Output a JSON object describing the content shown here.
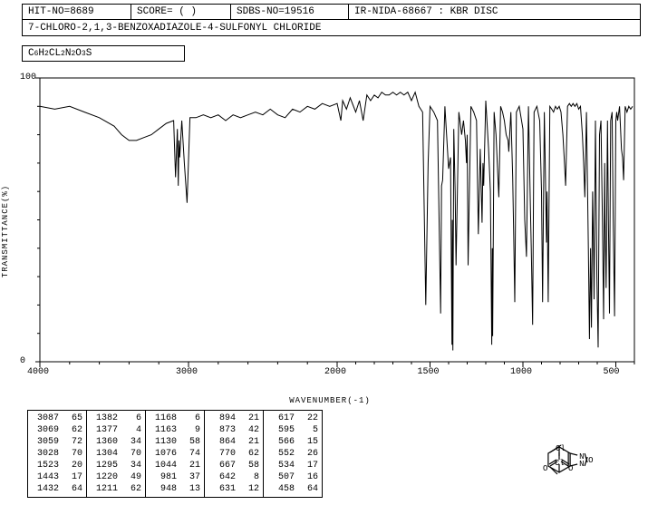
{
  "header": {
    "hit_no": "HIT-NO=8689",
    "score": "SCORE=  (  )",
    "sdbs_no": "SDBS-NO=19516",
    "ir_info": "IR-NIDA-68667 : KBR DISC"
  },
  "compound_name": "7-CHLORO-2,1,3-BENZOXADIAZOLE-4-SULFONYL CHLORIDE",
  "formula_html": "C<sub>6</sub>H<sub>2</sub>CL<sub>2</sub>N<sub>2</sub>O<sub>3</sub>S",
  "chart": {
    "type": "line",
    "xlabel": "WAVENUMBER(-1)",
    "ylabel": "TRANSMITTANCE(%)",
    "xlim": [
      4000,
      400
    ],
    "ylim": [
      0,
      100
    ],
    "xticks": [
      4000,
      3000,
      2000,
      1500,
      1000,
      500
    ],
    "yticks": [
      0,
      100
    ],
    "minor_xtick_step_high": 200,
    "minor_xtick_step_low": 100,
    "background_color": "#ffffff",
    "line_color": "#000000",
    "axis_color": "#000000",
    "line_width": 1,
    "spectrum": [
      [
        4000,
        90
      ],
      [
        3900,
        89
      ],
      [
        3800,
        90
      ],
      [
        3700,
        88
      ],
      [
        3600,
        86
      ],
      [
        3500,
        83
      ],
      [
        3450,
        80
      ],
      [
        3400,
        78
      ],
      [
        3350,
        78
      ],
      [
        3300,
        79
      ],
      [
        3250,
        80
      ],
      [
        3200,
        82
      ],
      [
        3150,
        84
      ],
      [
        3100,
        85
      ],
      [
        3087,
        65
      ],
      [
        3075,
        82
      ],
      [
        3069,
        62
      ],
      [
        3064,
        78
      ],
      [
        3059,
        72
      ],
      [
        3045,
        85
      ],
      [
        3028,
        70
      ],
      [
        3010,
        56
      ],
      [
        2990,
        86
      ],
      [
        2950,
        86
      ],
      [
        2900,
        87
      ],
      [
        2850,
        86
      ],
      [
        2800,
        87
      ],
      [
        2750,
        85
      ],
      [
        2700,
        87
      ],
      [
        2650,
        86
      ],
      [
        2600,
        87
      ],
      [
        2550,
        88
      ],
      [
        2500,
        87
      ],
      [
        2450,
        89
      ],
      [
        2400,
        87
      ],
      [
        2350,
        86
      ],
      [
        2300,
        89
      ],
      [
        2250,
        88
      ],
      [
        2200,
        90
      ],
      [
        2150,
        89
      ],
      [
        2100,
        91
      ],
      [
        2050,
        90
      ],
      [
        2000,
        91
      ],
      [
        1980,
        85
      ],
      [
        1970,
        92
      ],
      [
        1950,
        89
      ],
      [
        1930,
        93
      ],
      [
        1900,
        88
      ],
      [
        1880,
        92
      ],
      [
        1860,
        85
      ],
      [
        1840,
        94
      ],
      [
        1820,
        92
      ],
      [
        1800,
        94
      ],
      [
        1780,
        93
      ],
      [
        1760,
        95
      ],
      [
        1740,
        94
      ],
      [
        1720,
        94
      ],
      [
        1700,
        95
      ],
      [
        1680,
        94
      ],
      [
        1660,
        95
      ],
      [
        1640,
        94
      ],
      [
        1620,
        95
      ],
      [
        1600,
        92
      ],
      [
        1580,
        95
      ],
      [
        1560,
        90
      ],
      [
        1540,
        88
      ],
      [
        1523,
        20
      ],
      [
        1510,
        70
      ],
      [
        1500,
        90
      ],
      [
        1480,
        88
      ],
      [
        1460,
        85
      ],
      [
        1443,
        17
      ],
      [
        1438,
        62
      ],
      [
        1432,
        64
      ],
      [
        1420,
        90
      ],
      [
        1400,
        68
      ],
      [
        1390,
        72
      ],
      [
        1382,
        6
      ],
      [
        1380,
        50
      ],
      [
        1377,
        4
      ],
      [
        1372,
        82
      ],
      [
        1365,
        60
      ],
      [
        1360,
        34
      ],
      [
        1345,
        88
      ],
      [
        1330,
        80
      ],
      [
        1320,
        85
      ],
      [
        1310,
        78
      ],
      [
        1304,
        70
      ],
      [
        1300,
        80
      ],
      [
        1295,
        34
      ],
      [
        1280,
        90
      ],
      [
        1265,
        88
      ],
      [
        1250,
        85
      ],
      [
        1240,
        45
      ],
      [
        1230,
        75
      ],
      [
        1220,
        49
      ],
      [
        1215,
        70
      ],
      [
        1211,
        62
      ],
      [
        1200,
        92
      ],
      [
        1185,
        75
      ],
      [
        1175,
        60
      ],
      [
        1168,
        6
      ],
      [
        1165,
        40
      ],
      [
        1163,
        9
      ],
      [
        1155,
        88
      ],
      [
        1145,
        80
      ],
      [
        1138,
        70
      ],
      [
        1130,
        58
      ],
      [
        1120,
        90
      ],
      [
        1110,
        88
      ],
      [
        1100,
        85
      ],
      [
        1090,
        80
      ],
      [
        1080,
        78
      ],
      [
        1076,
        74
      ],
      [
        1065,
        88
      ],
      [
        1055,
        65
      ],
      [
        1050,
        45
      ],
      [
        1044,
        21
      ],
      [
        1035,
        88
      ],
      [
        1020,
        90
      ],
      [
        1000,
        82
      ],
      [
        990,
        50
      ],
      [
        981,
        37
      ],
      [
        970,
        90
      ],
      [
        960,
        55
      ],
      [
        955,
        40
      ],
      [
        948,
        13
      ],
      [
        940,
        88
      ],
      [
        925,
        90
      ],
      [
        910,
        85
      ],
      [
        900,
        60
      ],
      [
        894,
        21
      ],
      [
        885,
        88
      ],
      [
        880,
        70
      ],
      [
        873,
        42
      ],
      [
        870,
        60
      ],
      [
        864,
        21
      ],
      [
        855,
        90
      ],
      [
        845,
        89
      ],
      [
        835,
        88
      ],
      [
        825,
        90
      ],
      [
        815,
        89
      ],
      [
        805,
        90
      ],
      [
        795,
        88
      ],
      [
        785,
        80
      ],
      [
        778,
        72
      ],
      [
        770,
        62
      ],
      [
        760,
        90
      ],
      [
        750,
        91
      ],
      [
        740,
        90
      ],
      [
        730,
        91
      ],
      [
        720,
        90
      ],
      [
        710,
        91
      ],
      [
        700,
        89
      ],
      [
        690,
        90
      ],
      [
        680,
        80
      ],
      [
        673,
        70
      ],
      [
        667,
        58
      ],
      [
        658,
        88
      ],
      [
        648,
        40
      ],
      [
        642,
        8
      ],
      [
        636,
        40
      ],
      [
        631,
        12
      ],
      [
        625,
        60
      ],
      [
        620,
        40
      ],
      [
        617,
        22
      ],
      [
        610,
        85
      ],
      [
        602,
        30
      ],
      [
        595,
        5
      ],
      [
        588,
        80
      ],
      [
        580,
        85
      ],
      [
        572,
        50
      ],
      [
        566,
        15
      ],
      [
        560,
        70
      ],
      [
        558,
        50
      ],
      [
        552,
        26
      ],
      [
        545,
        85
      ],
      [
        540,
        50
      ],
      [
        534,
        17
      ],
      [
        528,
        85
      ],
      [
        520,
        88
      ],
      [
        514,
        50
      ],
      [
        507,
        16
      ],
      [
        500,
        85
      ],
      [
        495,
        88
      ],
      [
        490,
        85
      ],
      [
        480,
        90
      ],
      [
        470,
        75
      ],
      [
        464,
        72
      ],
      [
        458,
        64
      ],
      [
        450,
        90
      ],
      [
        440,
        88
      ],
      [
        430,
        90
      ],
      [
        420,
        89
      ],
      [
        410,
        90
      ]
    ]
  },
  "peak_table": {
    "columns": [
      [
        [
          3087,
          65
        ],
        [
          3069,
          62
        ],
        [
          3059,
          72
        ],
        [
          3028,
          70
        ],
        [
          1523,
          20
        ],
        [
          1443,
          17
        ],
        [
          1432,
          64
        ]
      ],
      [
        [
          1382,
          6
        ],
        [
          1377,
          4
        ],
        [
          1360,
          34
        ],
        [
          1304,
          70
        ],
        [
          1295,
          34
        ],
        [
          1220,
          49
        ],
        [
          1211,
          62
        ]
      ],
      [
        [
          1168,
          6
        ],
        [
          1163,
          9
        ],
        [
          1130,
          58
        ],
        [
          1076,
          74
        ],
        [
          1044,
          21
        ],
        [
          981,
          37
        ],
        [
          948,
          13
        ]
      ],
      [
        [
          894,
          21
        ],
        [
          873,
          42
        ],
        [
          864,
          21
        ],
        [
          770,
          62
        ],
        [
          667,
          58
        ],
        [
          642,
          8
        ],
        [
          631,
          12
        ]
      ],
      [
        [
          617,
          22
        ],
        [
          595,
          5
        ],
        [
          566,
          15
        ],
        [
          552,
          26
        ],
        [
          534,
          17
        ],
        [
          507,
          16
        ],
        [
          458,
          64
        ]
      ]
    ]
  },
  "molecule": {
    "line_color": "#000000",
    "labels": {
      "top": "Cl",
      "so2": "",
      "n1": "N",
      "n2": "N",
      "o": "O",
      "bottom": "Cl"
    }
  }
}
